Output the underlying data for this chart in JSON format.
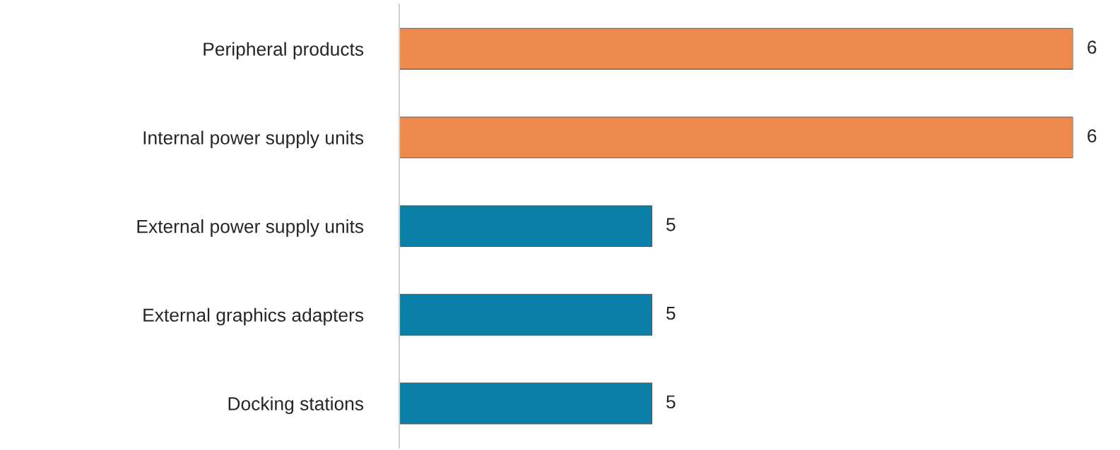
{
  "chart_data": {
    "type": "bar",
    "orientation": "horizontal",
    "categories": [
      "Peripheral products",
      "Internal power supply units",
      "External power supply units",
      "External graphics adapters",
      "Docking stations"
    ],
    "values": [
      6,
      6,
      5,
      5,
      5
    ],
    "colors": [
      "#ee8a4e",
      "#ee8a4e",
      "#0a7fa8",
      "#0a7fa8",
      "#0a7fa8"
    ],
    "xlim": [
      4.4,
      6
    ],
    "tick_labels": "y",
    "data_labels": true,
    "grid": false,
    "legend": false
  }
}
